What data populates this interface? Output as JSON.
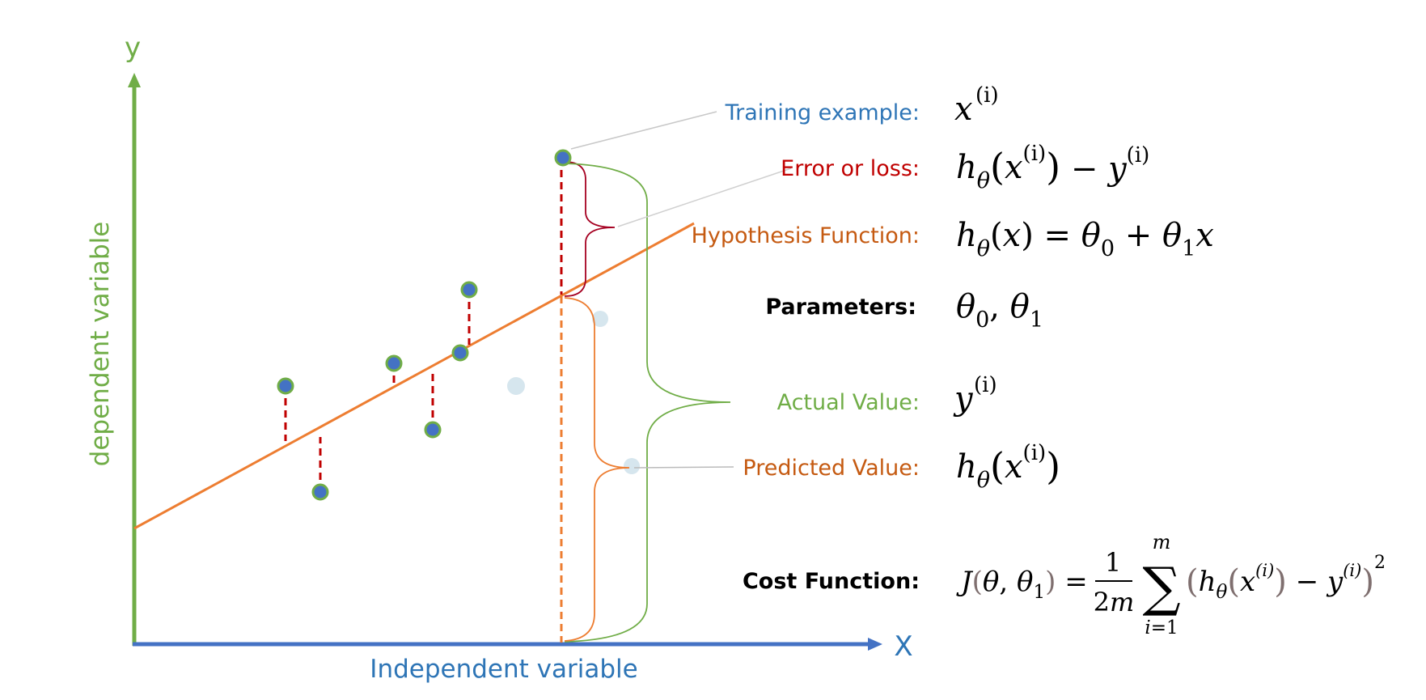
{
  "axes": {
    "y_letter": "y",
    "x_letter": "X",
    "y_label": "dependent variable",
    "x_label": "Independent variable"
  },
  "labels": {
    "training_example": "Training example:",
    "error_or_loss": "Error or loss:",
    "hypothesis_function": "Hypothesis Function:",
    "parameters": "Parameters:",
    "actual_value": "Actual Value:",
    "predicted_value": "Predicted Value:",
    "cost_function": "Cost Function:"
  },
  "colors": {
    "green": "#70ad47",
    "blue_axis": "#4472c4",
    "blue_text": "#2e75b6",
    "orange": "#ed7d31",
    "orange_text": "#c55a11",
    "red": "#c00000",
    "dark_red": "#a50021",
    "point_fill": "#4472c4",
    "point_stroke": "#70ad47",
    "ghost": "#d6e6ee"
  }
}
